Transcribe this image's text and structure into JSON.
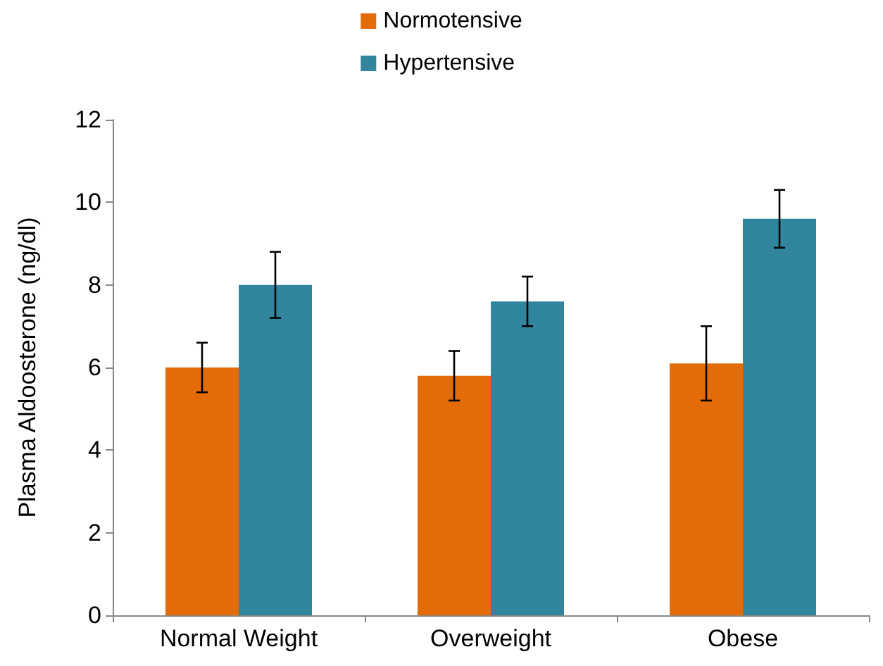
{
  "chart_data": {
    "type": "bar",
    "ylabel": "Plasma Aldoosterone (ng/dl)",
    "categories": [
      "Normal Weight",
      "Overweight",
      "Obese"
    ],
    "series": [
      {
        "name": "Normotensive",
        "color": "#e36c09",
        "values": [
          6.0,
          5.8,
          6.1
        ],
        "errors": [
          0.6,
          0.6,
          0.9
        ]
      },
      {
        "name": "Hypertensive",
        "color": "#31859c",
        "values": [
          8.0,
          7.6,
          9.6
        ],
        "errors": [
          0.8,
          0.6,
          0.7
        ]
      }
    ],
    "ylim": [
      0,
      12
    ],
    "yticks": [
      0,
      2,
      4,
      6,
      8,
      10,
      12
    ],
    "grid": false,
    "legend": "top"
  }
}
